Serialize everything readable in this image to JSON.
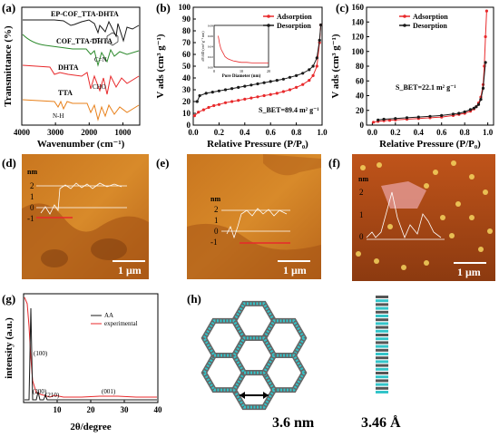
{
  "panels": {
    "a": {
      "label": "(a)"
    },
    "b": {
      "label": "(b)"
    },
    "c": {
      "label": "(c)"
    },
    "d": {
      "label": "(d)"
    },
    "e": {
      "label": "(e)"
    },
    "f": {
      "label": "(f)"
    },
    "g": {
      "label": "(g)"
    },
    "h": {
      "label": "(h)"
    }
  },
  "afm": {
    "d": {
      "unit": "nm",
      "yticks": [
        "2",
        "1",
        "0",
        "-1"
      ],
      "scale_bar": "1 μm"
    },
    "e": {
      "unit": "nm",
      "yticks": [
        "2",
        "1",
        "0",
        "-1"
      ],
      "scale_bar": "1 μm"
    },
    "f": {
      "unit": "nm",
      "yticks": [
        "2",
        "1",
        "0"
      ],
      "scale_bar": "1 μm"
    }
  },
  "structure": {
    "pore_size": "3.6 nm",
    "interlayer": "3.46 Å"
  },
  "colors": {
    "red": "#e8292b",
    "black": "#1a1a1a",
    "blue": "#1f3a8a",
    "green": "#2e8b2e",
    "orange": "#e8801a",
    "cyan": "#33c4c9"
  },
  "chart_data": [
    {
      "id": "a",
      "type": "line",
      "xlabel": "Wavenumber (cm⁻¹)",
      "ylabel": "Transmittance (%)",
      "xlim": [
        4000,
        500
      ],
      "xticks": [
        "4000",
        "3000",
        "2000",
        "1000"
      ],
      "series": [
        {
          "name": "EP-COF_TTA-DHTA",
          "color": "#1a1a1a"
        },
        {
          "name": "COF_TTA-DHTA",
          "color": "#2e8b2e"
        },
        {
          "name": "DHTA",
          "color": "#e8292b"
        },
        {
          "name": "TTA",
          "color": "#e8801a"
        }
      ],
      "annotations": [
        "C=N",
        "CHO",
        "N-H"
      ]
    },
    {
      "id": "b",
      "type": "line",
      "xlabel": "Relative Pressure (P/P₀)",
      "ylabel": "V ads (cm³ g⁻¹)",
      "xlim": [
        0,
        1.0
      ],
      "ylim": [
        0,
        100
      ],
      "xticks": [
        "0.0",
        "0.2",
        "0.4",
        "0.6",
        "0.8",
        "1.0"
      ],
      "yticks": [
        "0",
        "10",
        "20",
        "30",
        "40",
        "50",
        "60",
        "70",
        "80",
        "90",
        "100"
      ],
      "legend": [
        "Adsorption",
        "Desorption"
      ],
      "annotation": "S_BET=89.4 m² g⁻¹",
      "series": [
        {
          "name": "Adsorption",
          "color": "#e8292b",
          "x": [
            0.01,
            0.04,
            0.08,
            0.12,
            0.16,
            0.2,
            0.25,
            0.3,
            0.35,
            0.4,
            0.45,
            0.5,
            0.55,
            0.6,
            0.65,
            0.7,
            0.75,
            0.8,
            0.85,
            0.9,
            0.93,
            0.96,
            0.98,
            0.99
          ],
          "y": [
            8,
            11,
            13,
            15,
            16.5,
            17.5,
            19,
            20,
            21,
            22,
            23,
            24,
            25,
            26,
            27,
            28.5,
            30,
            32,
            34.5,
            38,
            42,
            50,
            70,
            85
          ]
        },
        {
          "name": "Desorption",
          "color": "#1a1a1a",
          "x": [
            0.99,
            0.98,
            0.96,
            0.93,
            0.9,
            0.85,
            0.8,
            0.75,
            0.7,
            0.65,
            0.6,
            0.55,
            0.5,
            0.45,
            0.4,
            0.35,
            0.3,
            0.25,
            0.2,
            0.15,
            0.1,
            0.05,
            0.03
          ],
          "y": [
            85,
            72,
            57,
            50,
            47,
            44,
            42,
            40.5,
            39,
            38,
            37,
            36,
            35,
            34,
            33,
            32,
            31,
            30,
            29,
            28,
            27,
            25,
            20
          ]
        }
      ],
      "inset": {
        "xlabel": "Pore Diameter (nm)",
        "ylabel": "dV/dD (cm³ g⁻¹ nm)",
        "xlim": [
          0,
          20
        ],
        "ylim": [
          0,
          0.08
        ],
        "xticks": [
          "0",
          "10",
          "20"
        ],
        "yticks": [
          "0.00",
          "0.02",
          "0.04",
          "0.06",
          "0.08"
        ],
        "x": [
          1.5,
          2,
          2.5,
          3,
          3.5,
          4,
          5,
          6,
          7,
          8,
          9,
          10,
          12,
          14,
          16,
          18,
          20
        ],
        "y": [
          0.06,
          0.045,
          0.035,
          0.03,
          0.025,
          0.02,
          0.016,
          0.014,
          0.012,
          0.011,
          0.01,
          0.009,
          0.009,
          0.008,
          0.008,
          0.008,
          0.008
        ]
      }
    },
    {
      "id": "c",
      "type": "line",
      "xlabel": "Relative Pressure (P/P₀)",
      "ylabel": "V ads (cm³ g⁻¹)",
      "xlim": [
        -0.05,
        1.05
      ],
      "ylim": [
        0,
        160
      ],
      "xticks": [
        "0.0",
        "0.2",
        "0.4",
        "0.6",
        "0.8",
        "1.0"
      ],
      "yticks": [
        "0",
        "20",
        "40",
        "60",
        "80",
        "100",
        "120",
        "140",
        "160"
      ],
      "legend": [
        "Adsorption",
        "Desorption"
      ],
      "annotation": "S_BET=22.1 m² g⁻¹",
      "series": [
        {
          "name": "Adsorption",
          "color": "#e8292b",
          "x": [
            0.01,
            0.05,
            0.1,
            0.15,
            0.2,
            0.3,
            0.4,
            0.5,
            0.6,
            0.7,
            0.75,
            0.8,
            0.85,
            0.88,
            0.9,
            0.92,
            0.94,
            0.96,
            0.97,
            0.98,
            0.99
          ],
          "y": [
            4,
            5,
            6,
            6.5,
            7,
            8,
            9,
            10,
            11,
            13,
            14.5,
            16,
            19,
            22,
            25,
            30,
            38,
            55,
            80,
            120,
            155
          ]
        },
        {
          "name": "Desorption",
          "color": "#1a1a1a",
          "x": [
            0.98,
            0.96,
            0.94,
            0.92,
            0.9,
            0.88,
            0.85,
            0.8,
            0.75,
            0.7,
            0.6,
            0.5,
            0.4,
            0.3,
            0.2,
            0.1,
            0.05
          ],
          "y": [
            85,
            50,
            35,
            28,
            25,
            23,
            21,
            18,
            16,
            15,
            13,
            12,
            11,
            10,
            9,
            8,
            7
          ]
        }
      ]
    },
    {
      "id": "g",
      "type": "line",
      "xlabel": "2θ/degree",
      "ylabel": "intensity (a.u.)",
      "xlim": [
        0,
        40
      ],
      "xticks": [
        "10",
        "20",
        "30",
        "40"
      ],
      "legend": [
        "AA",
        "experimental"
      ],
      "series": [
        {
          "name": "AA",
          "color": "#1a1a1a"
        },
        {
          "name": "experimental",
          "color": "#e8292b"
        }
      ],
      "peak_labels": [
        "(100)",
        "(200)",
        "(210)",
        "(001)"
      ]
    }
  ]
}
